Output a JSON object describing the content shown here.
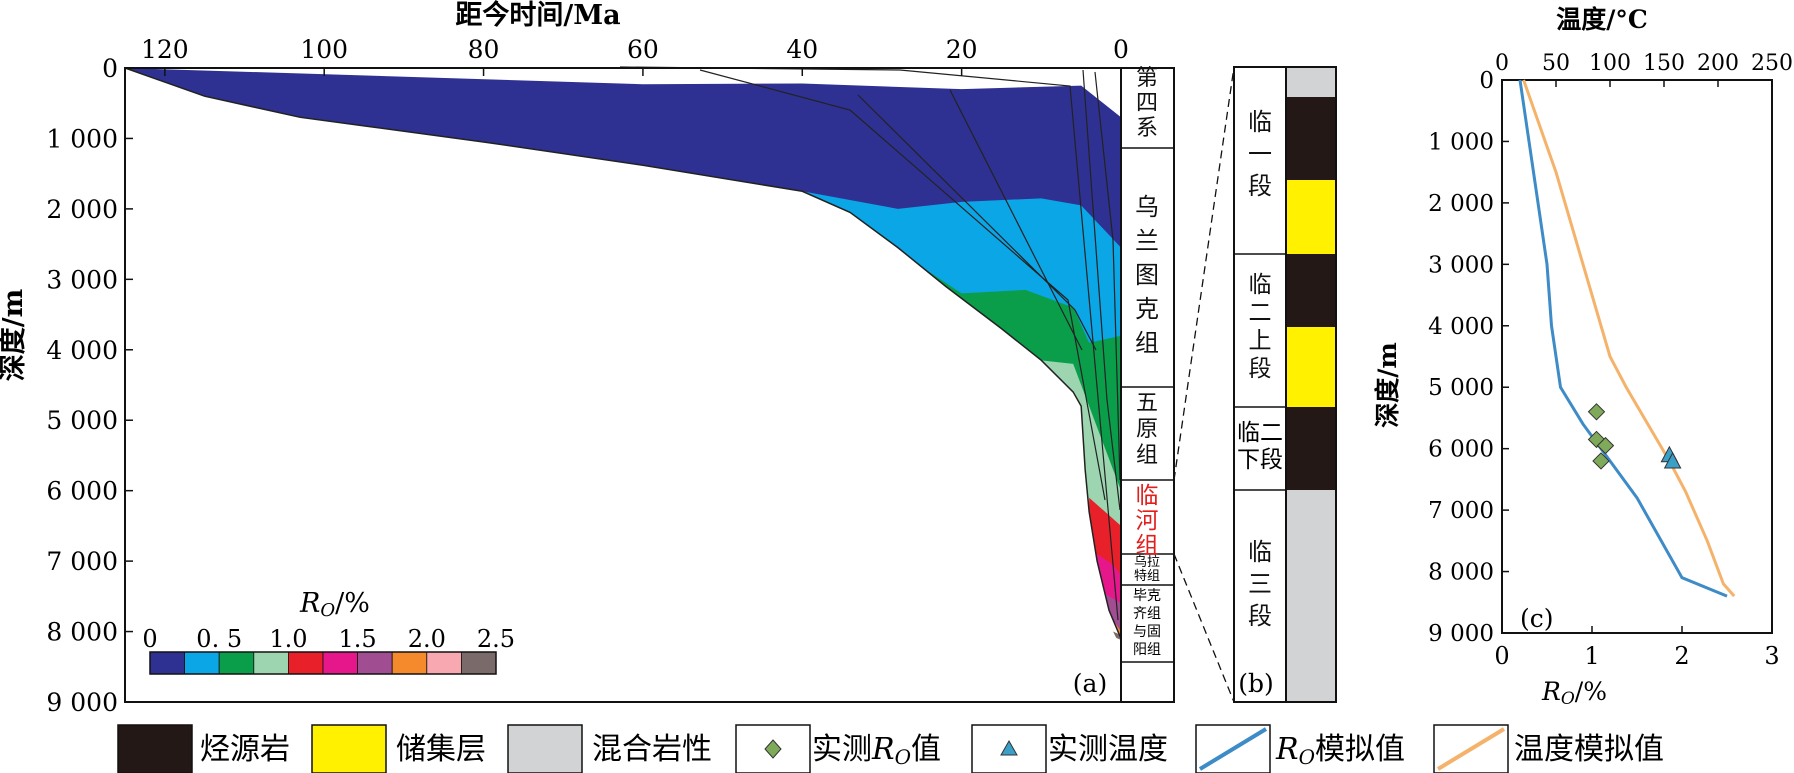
{
  "panel_a": {
    "top_axis_title": "距今时间/Ma",
    "y_axis_title": "深度/m",
    "x_ticks": [
      "120",
      "100",
      "80",
      "60",
      "40",
      "20",
      "0"
    ],
    "y_ticks": [
      "0",
      "1 000",
      "2 000",
      "3 000",
      "4 000",
      "5 000",
      "6 000",
      "7 000",
      "8 000",
      "9 000"
    ],
    "label": "(a)",
    "formations": [
      "第四系",
      "乌兰图克组",
      "五原组",
      "临河组",
      "乌拉特组",
      "毕克齐组与固阳组"
    ],
    "ro_scale": {
      "title": "Ro/%",
      "ticks": [
        "0",
        "0. 5",
        "1.0",
        "1.5",
        "2.0",
        "2.5"
      ],
      "colors": [
        "#2e3192",
        "#0ba6e6",
        "#0a9e4b",
        "#9dd5b0",
        "#e8202a",
        "#e6178b",
        "#a04d92",
        "#f48a2b",
        "#f7a8b0",
        "#7b6a6a"
      ]
    }
  },
  "panel_b": {
    "label": "(b)",
    "segments": [
      "临一段",
      "临二上段",
      "临二下段",
      "临三段"
    ],
    "lithology_colors": {
      "source": "#231815",
      "reservoir": "#fff100",
      "mixed": "#d2d3d5"
    }
  },
  "panel_c": {
    "label": "(c)",
    "top_axis_title": "温度/°C",
    "x_axis_title": "Ro/%",
    "y_axis_title": "深度/m",
    "x_ticks": [
      "0",
      "1",
      "2",
      "3"
    ],
    "temp_ticks": [
      "0",
      "50",
      "100",
      "150",
      "200",
      "250"
    ],
    "y_ticks": [
      "0",
      "1 000",
      "2 000",
      "3 000",
      "4 000",
      "5 000",
      "6 000",
      "7 000",
      "8 000",
      "9 000"
    ]
  },
  "legend": {
    "source_rock": "烃源岩",
    "reservoir": "储集层",
    "mixed": "混合岩性",
    "measured_ro": "实测Ro值",
    "measured_temp": "实测温度",
    "sim_ro": "Ro模拟值",
    "sim_temp": "温度模拟值"
  },
  "chart_data": [
    {
      "type": "area",
      "chart": "burial-history",
      "x_unit": "Ma",
      "y_unit": "m",
      "xlim": [
        125,
        0
      ],
      "ylim": [
        0,
        9000
      ],
      "basement_curve": [
        [
          125,
          0
        ],
        [
          115,
          400
        ],
        [
          103,
          700
        ],
        [
          80,
          1050
        ],
        [
          60,
          1380
        ],
        [
          40,
          1750
        ],
        [
          34,
          2050
        ],
        [
          28,
          2550
        ],
        [
          22,
          3100
        ],
        [
          15,
          3700
        ],
        [
          10,
          4150
        ],
        [
          6,
          4600
        ],
        [
          5,
          4800
        ],
        [
          4.5,
          5700
        ],
        [
          4,
          6300
        ],
        [
          3,
          7000
        ],
        [
          1.5,
          7700
        ],
        [
          0,
          8100
        ]
      ],
      "ro_zones": [
        {
          "ro": "0–0.5",
          "top": [
            [
              125,
              0
            ],
            [
              60,
              230
            ],
            [
              40,
              220
            ],
            [
              20,
              300
            ],
            [
              5,
              250
            ],
            [
              0,
              700
            ]
          ]
        },
        {
          "ro": "0.5–0.75",
          "top": [
            [
              60,
              1560
            ],
            [
              40,
              1900
            ],
            [
              28,
              2000
            ],
            [
              20,
              1900
            ],
            [
              10,
              1850
            ],
            [
              5,
              1950
            ],
            [
              0,
              2550
            ]
          ]
        },
        {
          "ro": "0.75–1.0",
          "top": [
            [
              25,
              3050
            ],
            [
              20,
              3200
            ],
            [
              12,
              3150
            ],
            [
              6,
              3400
            ],
            [
              4,
              3900
            ],
            [
              0,
              3800
            ]
          ]
        },
        {
          "ro": "1.0–1.25",
          "top": [
            [
              10,
              4150
            ],
            [
              6,
              4200
            ],
            [
              3,
              5100
            ],
            [
              0,
              6000
            ]
          ]
        },
        {
          "ro": "1.25–1.5",
          "top": [
            [
              4,
              6100
            ],
            [
              2,
              6300
            ],
            [
              0,
              6500
            ]
          ]
        },
        {
          "ro": "1.5–1.75",
          "top": [
            [
              3,
              6900
            ],
            [
              1,
              7050
            ],
            [
              0,
              7200
            ]
          ]
        },
        {
          "ro": "1.75–2.0",
          "top": [
            [
              2,
              7500
            ],
            [
              0,
              7600
            ]
          ]
        },
        {
          "ro": "2.0–2.25",
          "top": [
            [
              1,
              7950
            ],
            [
              0,
              8000
            ]
          ]
        },
        {
          "ro": "2.25–2.5",
          "top": [
            [
              0.5,
              8150
            ],
            [
              0,
              8200
            ]
          ]
        }
      ]
    },
    {
      "type": "line",
      "chart": "depth-profile",
      "y_unit": "m",
      "ylim": [
        0,
        9000
      ],
      "x_ro_lim": [
        0,
        3
      ],
      "x_temp_lim": [
        0,
        250
      ],
      "series": [
        {
          "name": "Ro模拟值",
          "axis": "ro",
          "points": [
            [
              0.2,
              0
            ],
            [
              0.3,
              1000
            ],
            [
              0.4,
              2000
            ],
            [
              0.5,
              3000
            ],
            [
              0.55,
              4000
            ],
            [
              0.65,
              5000
            ],
            [
              0.9,
              5600
            ],
            [
              1.1,
              6000
            ],
            [
              1.5,
              6800
            ],
            [
              2.0,
              8100
            ],
            [
              2.5,
              8400
            ]
          ]
        },
        {
          "name": "温度模拟值",
          "axis": "temp",
          "points": [
            [
              20,
              0
            ],
            [
              30,
              500
            ],
            [
              40,
              1000
            ],
            [
              50,
              1500
            ],
            [
              75,
              3000
            ],
            [
              100,
              4500
            ],
            [
              115,
              5000
            ],
            [
              135,
              5600
            ],
            [
              155,
              6200
            ],
            [
              170,
              6700
            ],
            [
              190,
              7500
            ],
            [
              205,
              8200
            ],
            [
              215,
              8400
            ]
          ]
        },
        {
          "name": "实测Ro值",
          "axis": "ro",
          "points": [
            [
              1.05,
              5400
            ],
            [
              1.05,
              5850
            ],
            [
              1.15,
              5950
            ],
            [
              1.1,
              6200
            ]
          ]
        },
        {
          "name": "实测温度",
          "axis": "temp",
          "points": [
            [
              155,
              6100
            ],
            [
              158,
              6200
            ]
          ]
        }
      ]
    }
  ]
}
